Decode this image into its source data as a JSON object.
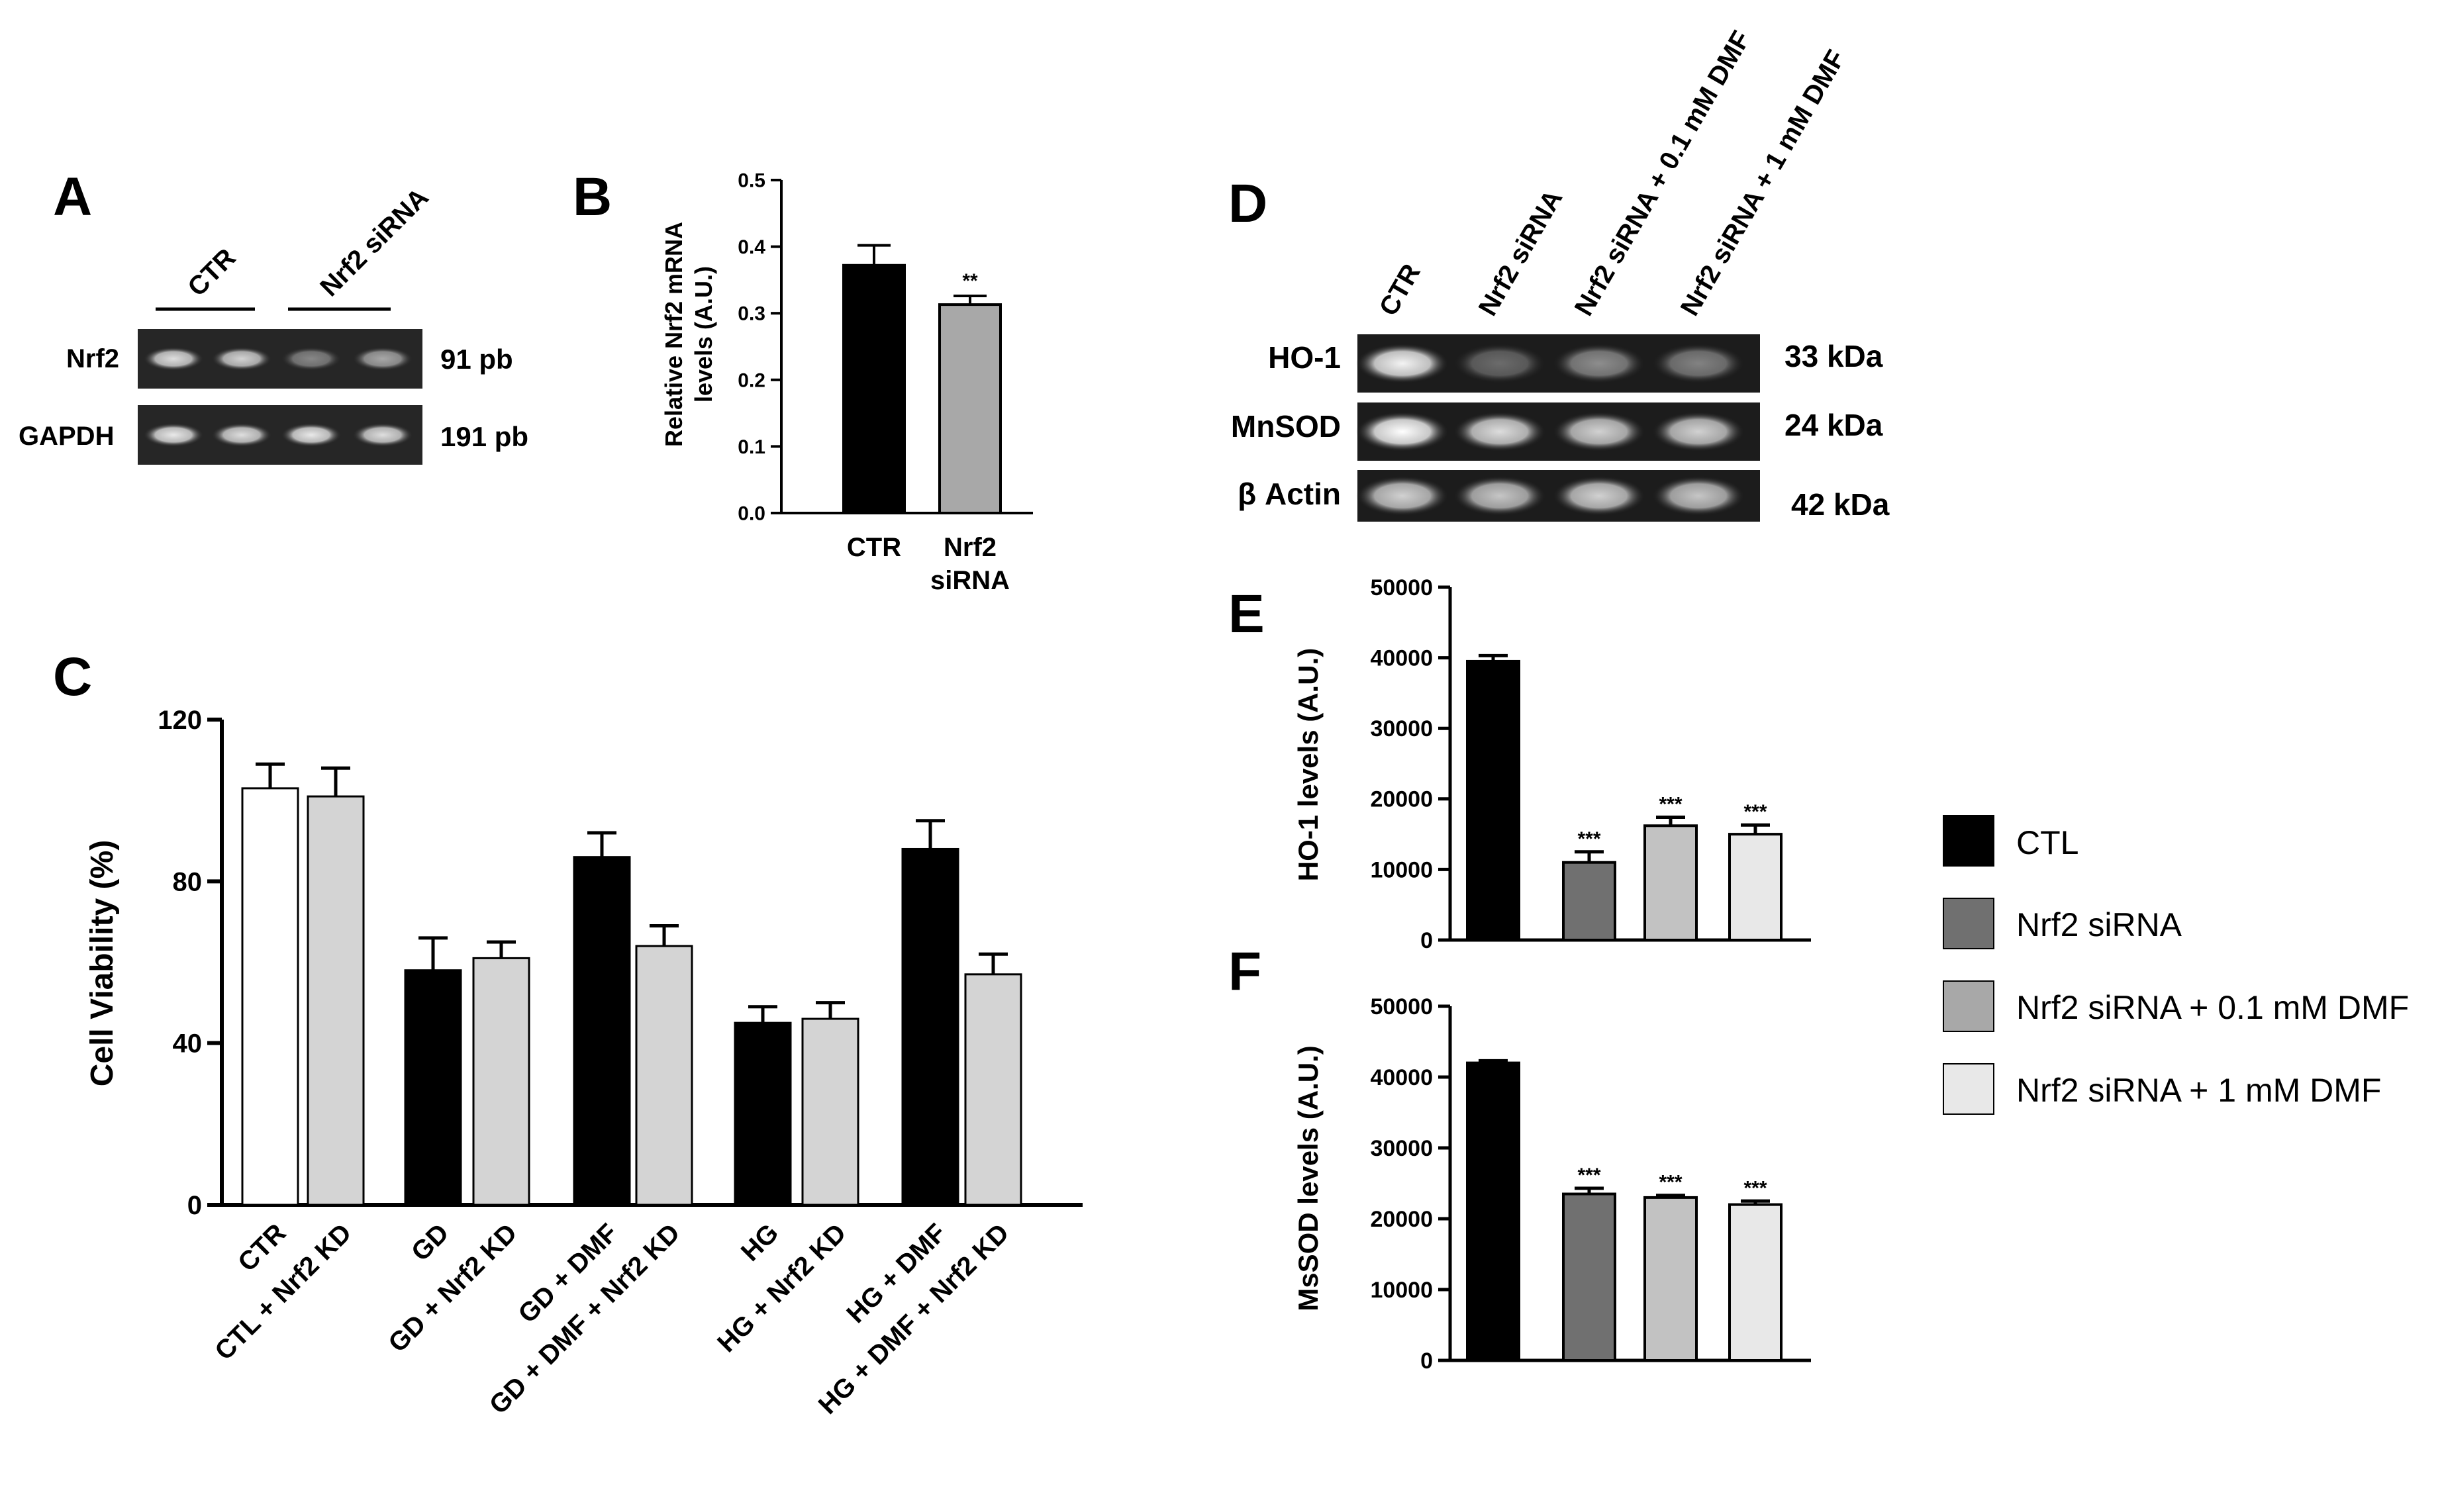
{
  "panels": {
    "A": {
      "letter": "A",
      "group_labels": [
        "CTR",
        "Nrf2 siRNA"
      ],
      "rows": [
        {
          "label": "Nrf2",
          "size": "91 pb",
          "band_intensity": [
            0.85,
            0.8,
            0.45,
            0.6
          ]
        },
        {
          "label": "GAPDH",
          "size": "191 pb",
          "band_intensity": [
            0.9,
            0.85,
            0.9,
            0.85
          ]
        }
      ]
    },
    "B": {
      "letter": "B",
      "ylabel_line1": "Relative Nrf2 mRNA",
      "ylabel_line2": "levels (A.U.)",
      "ticks": [
        "0.0",
        "0.1",
        "0.2",
        "0.3",
        "0.4",
        "0.5"
      ],
      "cat1": "CTR",
      "cat2_line1": "Nrf2",
      "cat2_line2": "siRNA",
      "sig": "**"
    },
    "C": {
      "letter": "C",
      "ylabel": "Cell Viability  (%)",
      "ticks": [
        "0",
        "40",
        "80",
        "120"
      ],
      "categories": [
        "CTR",
        "CTL + Nrf2 KD",
        "GD",
        "GD + Nrf2 KD",
        "GD + DMF",
        "GD + DMF + Nrf2 KD",
        "HG",
        "HG + Nrf2 KD",
        "HG + DMF",
        "HG + DMF + Nrf2 KD"
      ]
    },
    "D": {
      "letter": "D",
      "lanes": [
        "CTR",
        "Nrf2 siRNA",
        "Nrf2 siRNA + 0.1 mM DMF",
        "Nrf2 siRNA + 1 mM DMF"
      ],
      "rows": [
        {
          "label": "HO-1",
          "size": "33 kDa",
          "band_intensity": [
            0.95,
            0.35,
            0.5,
            0.45
          ]
        },
        {
          "label": "MnSOD",
          "size": "24 kDa",
          "band_intensity": [
            1.0,
            0.85,
            0.8,
            0.8
          ]
        },
        {
          "label": "β Actin",
          "size": "42 kDa",
          "band_intensity": [
            0.8,
            0.75,
            0.8,
            0.75
          ]
        }
      ]
    },
    "E": {
      "letter": "E",
      "ylabel": "HO-1 levels (A.U.)",
      "ticks": [
        "0",
        "10000",
        "20000",
        "30000",
        "40000",
        "50000"
      ],
      "sig": "***"
    },
    "F": {
      "letter": "F",
      "ylabel": "MsSOD levels (A.U.)",
      "ticks": [
        "0",
        "10000",
        "20000",
        "30000",
        "40000",
        "50000"
      ],
      "sig": "***"
    }
  },
  "legend": {
    "items": [
      {
        "label": "CTL",
        "color": "#000000"
      },
      {
        "label": "Nrf2 siRNA",
        "color": "#707070"
      },
      {
        "label": "Nrf2 siRNA + 0.1 mM DMF",
        "color": "#a8a8a8"
      },
      {
        "label": "Nrf2 siRNA + 1 mM DMF",
        "color": "#e8e8e8"
      }
    ]
  },
  "chart_data": [
    {
      "panel": "B",
      "type": "bar",
      "categories": [
        "CTR",
        "Nrf2 siRNA"
      ],
      "values": [
        0.372,
        0.313
      ],
      "errors": [
        0.03,
        0.013
      ],
      "colors": [
        "#000000",
        "#a8a8a8"
      ],
      "ylim": [
        0,
        0.5
      ],
      "ylabel": "Relative Nrf2 mRNA levels (A.U.)",
      "annotations": [
        "",
        "**"
      ]
    },
    {
      "panel": "C",
      "type": "bar",
      "categories": [
        "CTR",
        "CTL + Nrf2 KD",
        "GD",
        "GD + Nrf2 KD",
        "GD + DMF",
        "GD + DMF + Nrf2 KD",
        "HG",
        "HG + Nrf2 KD",
        "HG + DMF",
        "HG + DMF + Nrf2 KD"
      ],
      "values": [
        103,
        101,
        58,
        61,
        86,
        64,
        45,
        46,
        88,
        57
      ],
      "errors": [
        6,
        7,
        8,
        4,
        6,
        5,
        4,
        4,
        7,
        5
      ],
      "colors": [
        "#ffffff",
        "#d4d4d4",
        "#000000",
        "#d4d4d4",
        "#000000",
        "#d4d4d4",
        "#000000",
        "#d4d4d4",
        "#000000",
        "#d4d4d4"
      ],
      "ylim": [
        0,
        120
      ],
      "ylabel": "Cell Viability  (%)"
    },
    {
      "panel": "E",
      "type": "bar",
      "categories": [
        "CTL",
        "Nrf2 siRNA",
        "Nrf2 siRNA + 0.1 mM DMF",
        "Nrf2 siRNA + 1 mM DMF"
      ],
      "values": [
        39500,
        11000,
        16200,
        15000
      ],
      "errors": [
        800,
        1500,
        1200,
        1300
      ],
      "colors": [
        "#000000",
        "#707070",
        "#c2c2c2",
        "#e8e8e8"
      ],
      "ylim": [
        0,
        50000
      ],
      "ylabel": "HO-1 levels (A.U.)",
      "annotations": [
        "",
        "***",
        "***",
        "***"
      ]
    },
    {
      "panel": "F",
      "type": "bar",
      "categories": [
        "CTL",
        "Nrf2 siRNA",
        "Nrf2 siRNA + 0.1 mM DMF",
        "Nrf2 siRNA + 1 mM DMF"
      ],
      "values": [
        42000,
        23500,
        23000,
        22000
      ],
      "errors": [
        300,
        800,
        300,
        500
      ],
      "colors": [
        "#000000",
        "#707070",
        "#c2c2c2",
        "#e8e8e8"
      ],
      "ylim": [
        0,
        50000
      ],
      "ylabel": "MsSOD levels (A.U.)",
      "annotations": [
        "",
        "***",
        "***",
        "***"
      ]
    }
  ]
}
